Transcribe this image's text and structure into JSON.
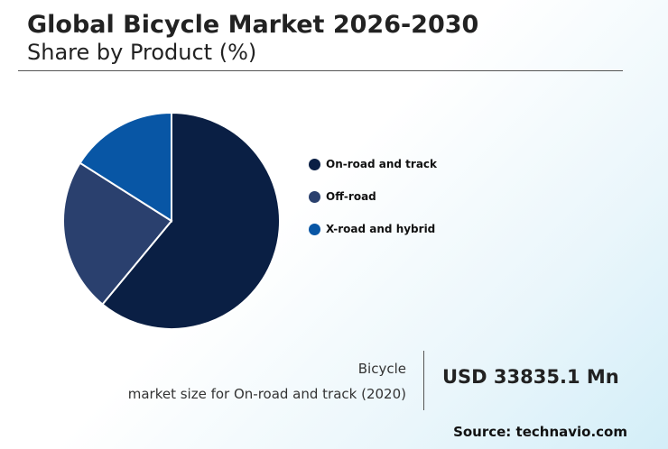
{
  "header": {
    "title": "Global Bicycle Market 2026-2030",
    "subtitle": "Share by Product (%)"
  },
  "chart_data": {
    "type": "pie",
    "categories": [
      "On-road and track",
      "Off-road",
      "X-road and hybrid"
    ],
    "values": [
      61,
      23,
      16
    ],
    "colors": [
      "#0a1f44",
      "#2a406e",
      "#0856a5"
    ],
    "legend_position": "right"
  },
  "stat": {
    "label_line1": "Bicycle",
    "label_line2": "market size for On-road and track (2020)",
    "value": "USD 33835.1 Mn"
  },
  "footer": {
    "source": "Source: technavio.com"
  }
}
